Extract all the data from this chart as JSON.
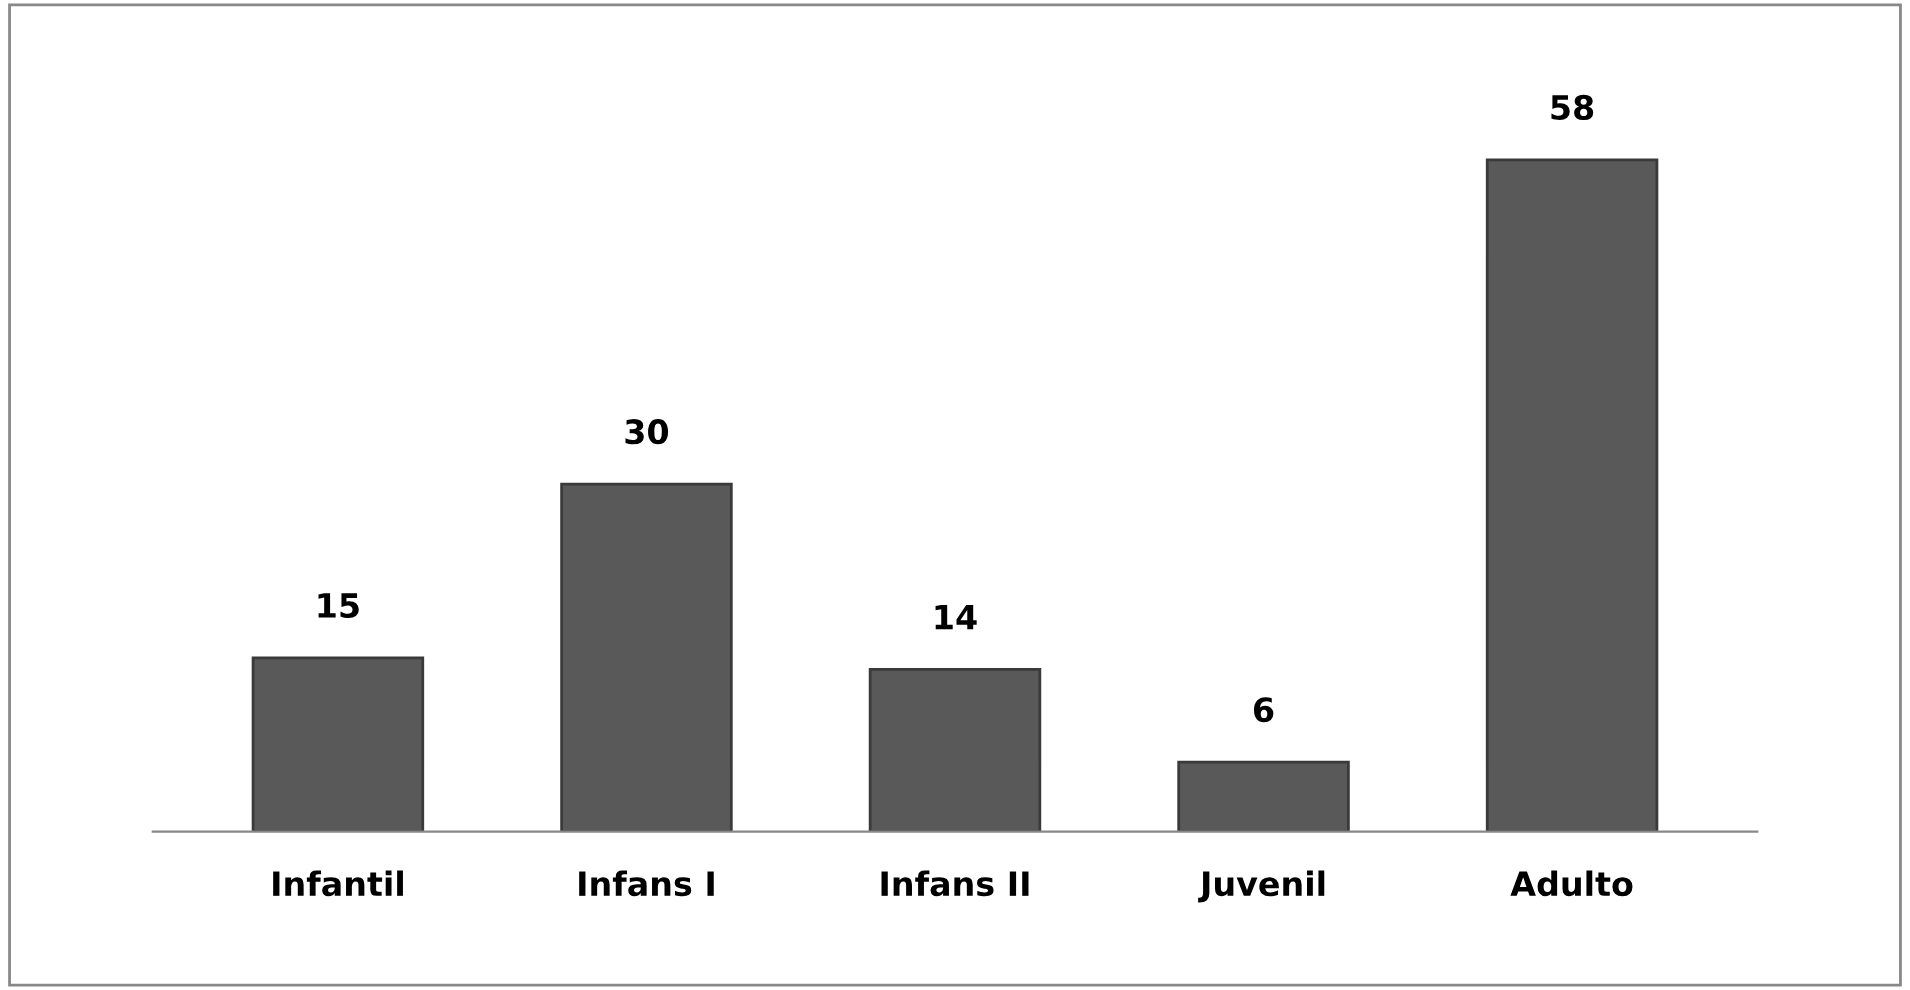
{
  "chart_data": {
    "type": "bar",
    "categories": [
      "Infantil",
      "Infans I",
      "Infans II",
      "Juvenil",
      "Adulto"
    ],
    "values": [
      15,
      30,
      14,
      6,
      58
    ],
    "color": "#595959",
    "data_labels": true,
    "grid": false,
    "legend": false
  }
}
